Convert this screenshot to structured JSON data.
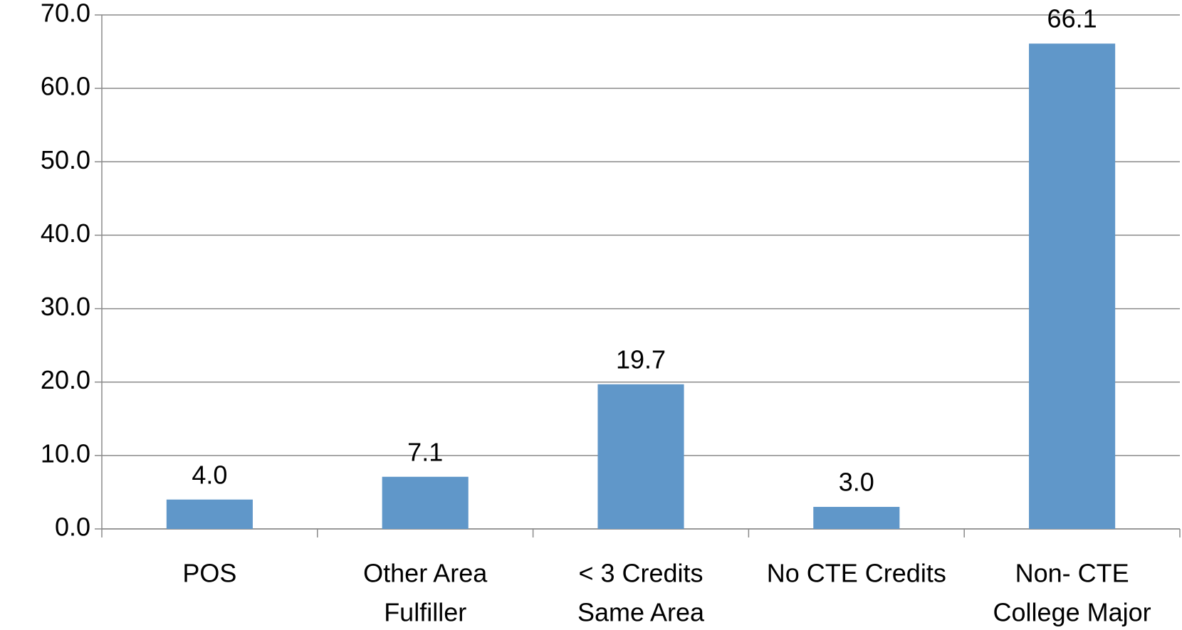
{
  "chart_data": {
    "type": "bar",
    "categories": [
      [
        "POS"
      ],
      [
        "Other  Area",
        "Fulfiller"
      ],
      [
        "< 3 Credits",
        "Same Area"
      ],
      [
        "No CTE Credits"
      ],
      [
        "Non- CTE",
        "College Major"
      ]
    ],
    "values": [
      4.0,
      7.1,
      19.7,
      3.0,
      66.1
    ],
    "value_labels": [
      "4.0",
      "7.1",
      "19.7",
      "3.0",
      "66.1"
    ],
    "color": "#6097c9",
    "ylim": [
      0,
      70
    ],
    "yticks": [
      {
        "value": 0,
        "label": "0.0"
      },
      {
        "value": 10,
        "label": "10.0"
      },
      {
        "value": 20,
        "label": "20.0"
      },
      {
        "value": 30,
        "label": "30.0"
      },
      {
        "value": 40,
        "label": "40.0"
      },
      {
        "value": 50,
        "label": "50.0"
      },
      {
        "value": 60,
        "label": "60.0"
      },
      {
        "value": 70,
        "label": "70.0"
      }
    ],
    "grid": true
  }
}
